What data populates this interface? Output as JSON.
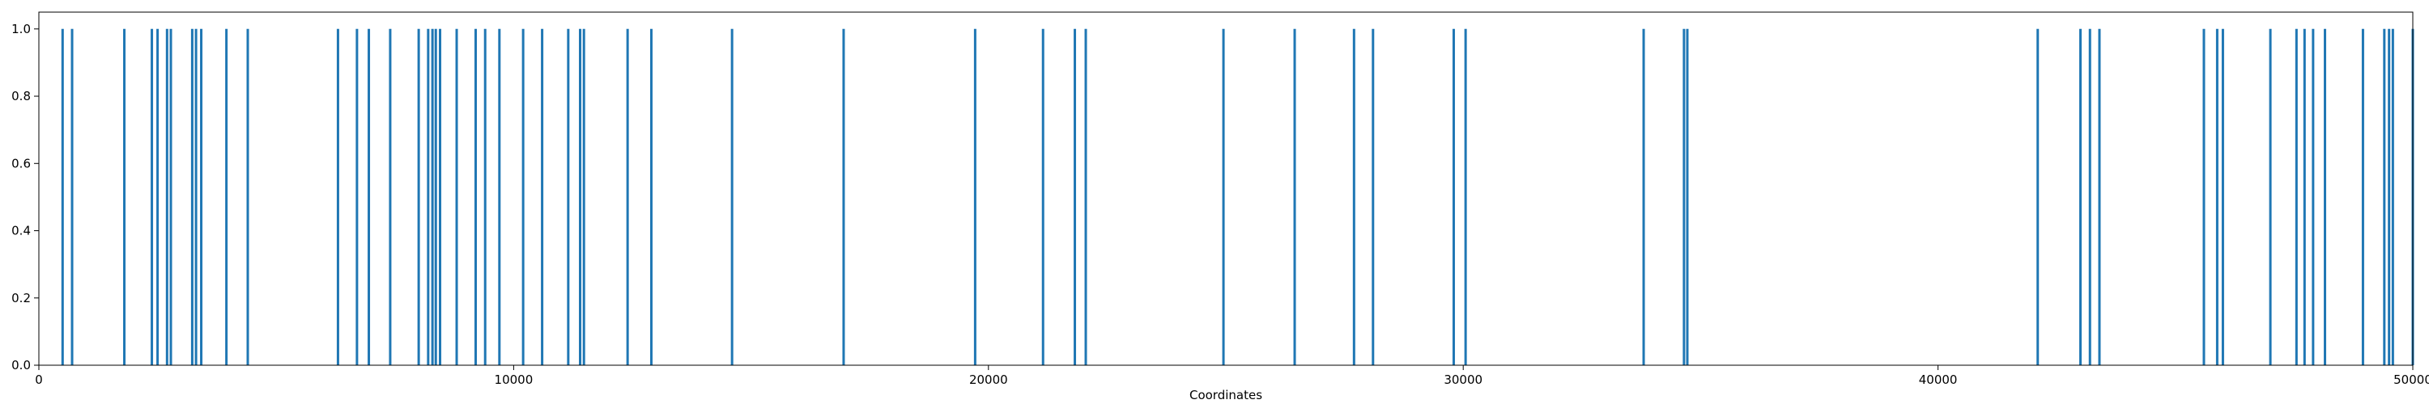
{
  "chart_data": {
    "type": "bar",
    "title": "",
    "xlabel": "Coordinates",
    "ylabel": "",
    "xlim": [
      0,
      50000
    ],
    "ylim": [
      0,
      1.05
    ],
    "grid": false,
    "bar_color": "#1f77b4",
    "x_ticks": [
      0,
      10000,
      20000,
      30000,
      40000,
      50000
    ],
    "y_ticks": [
      "0.0",
      "0.2",
      "0.4",
      "0.6",
      "0.8",
      "1.0"
    ],
    "x": [
      500,
      700,
      1800,
      2380,
      2500,
      2700,
      2780,
      3230,
      3310,
      3420,
      3950,
      4400,
      6300,
      6700,
      6950,
      7400,
      8000,
      8200,
      8290,
      8360,
      8450,
      8800,
      9200,
      9400,
      9700,
      10200,
      10600,
      11150,
      11400,
      11480,
      12400,
      12900,
      14600,
      16950,
      19720,
      21150,
      21820,
      22050,
      24950,
      26450,
      27700,
      28100,
      29800,
      30050,
      33800,
      34650,
      34720,
      42100,
      43000,
      43200,
      43400,
      45600,
      45880,
      46000,
      47000,
      47550,
      47720,
      47900,
      48150,
      48950,
      49400,
      49500,
      49580,
      50000
    ],
    "values": [
      1,
      1,
      1,
      1,
      1,
      1,
      1,
      1,
      1,
      1,
      1,
      1,
      1,
      1,
      1,
      1,
      1,
      1,
      1,
      1,
      1,
      1,
      1,
      1,
      1,
      1,
      1,
      1,
      1,
      1,
      1,
      1,
      1,
      1,
      1,
      1,
      1,
      1,
      1,
      1,
      1,
      1,
      1,
      1,
      1,
      1,
      1,
      1,
      1,
      1,
      1,
      1,
      1,
      1,
      1,
      1,
      1,
      1,
      1,
      1,
      1,
      1,
      1,
      1
    ]
  }
}
